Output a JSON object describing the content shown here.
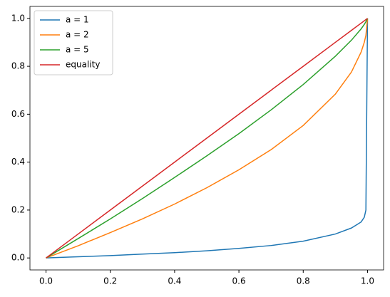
{
  "chart_data": {
    "type": "line",
    "x": [
      0,
      0.1,
      0.2,
      0.3,
      0.4,
      0.5,
      0.6,
      0.7,
      0.8,
      0.9,
      0.95,
      0.98,
      0.99,
      0.995,
      1
    ],
    "series": [
      {
        "name": "a = 1",
        "color": "#1f77b4",
        "values": [
          0,
          0.005,
          0.01,
          0.016,
          0.022,
          0.03,
          0.04,
          0.052,
          0.07,
          0.1,
          0.125,
          0.15,
          0.17,
          0.2,
          1
        ]
      },
      {
        "name": "a = 2",
        "color": "#ff7f0e",
        "values": [
          0,
          0.051,
          0.106,
          0.163,
          0.225,
          0.293,
          0.368,
          0.452,
          0.553,
          0.684,
          0.776,
          0.859,
          0.9,
          0.929,
          1
        ]
      },
      {
        "name": "a = 5",
        "color": "#2ca02c",
        "values": [
          0,
          0.081,
          0.163,
          0.248,
          0.336,
          0.426,
          0.519,
          0.618,
          0.724,
          0.842,
          0.909,
          0.956,
          0.975,
          0.986,
          1
        ]
      },
      {
        "name": "equality",
        "color": "#d62728",
        "values": [
          0,
          0.1,
          0.2,
          0.3,
          0.4,
          0.5,
          0.6,
          0.7,
          0.8,
          0.9,
          0.95,
          0.98,
          0.99,
          0.995,
          1
        ]
      }
    ],
    "xlim": [
      -0.05,
      1.05
    ],
    "ylim": [
      -0.05,
      1.05
    ],
    "xticks": [
      {
        "value": 0,
        "label": "0.0"
      },
      0.2,
      0.4,
      0.6,
      0.8,
      {
        "value": 1,
        "label": "1.0"
      }
    ],
    "yticks": [
      {
        "value": 0,
        "label": "0.0"
      },
      0.2,
      0.4,
      0.6,
      0.8,
      {
        "value": 1,
        "label": "1.0"
      }
    ],
    "legend": "upper left"
  }
}
